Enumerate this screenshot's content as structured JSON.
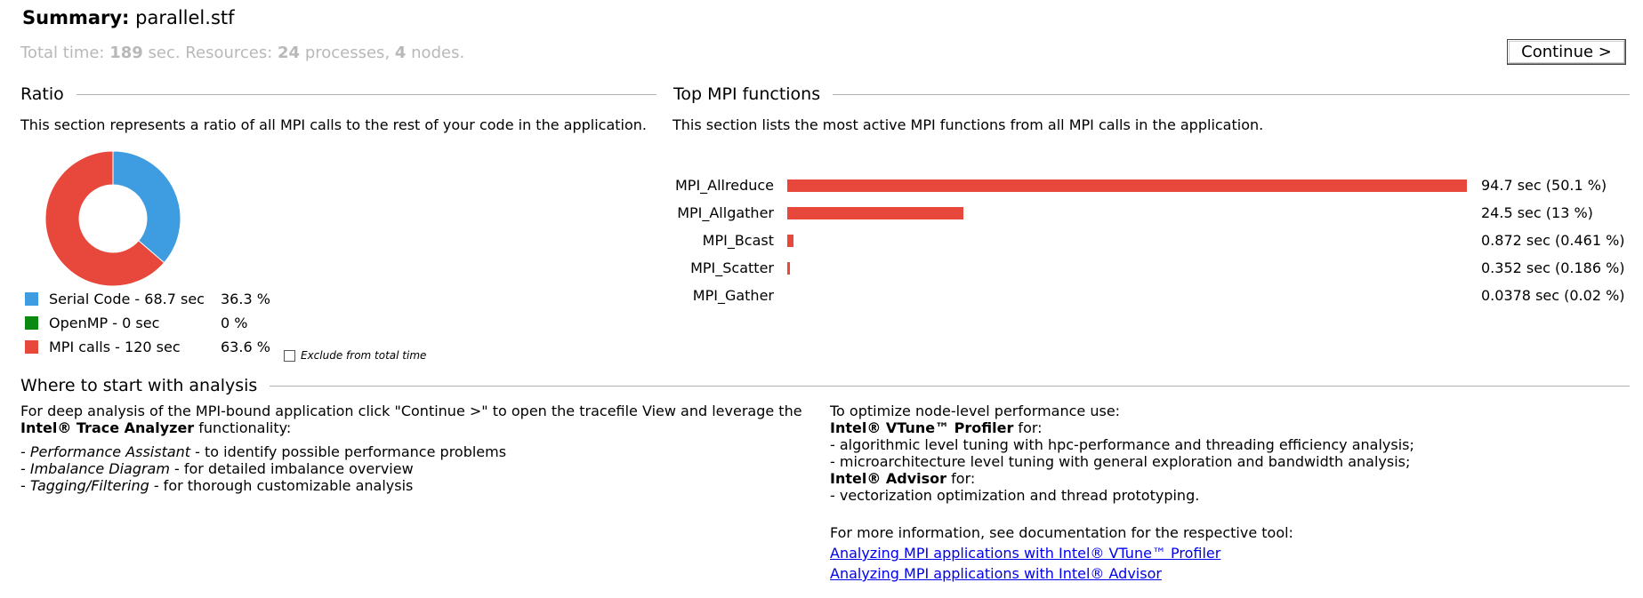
{
  "header": {
    "summary_label": "Summary:",
    "file_name": "parallel.stf",
    "total_time_prefix": "Total time: ",
    "total_time_value": "189",
    "total_time_suffix": " sec. Resources: ",
    "processes_value": "24",
    "processes_suffix": " processes, ",
    "nodes_value": "4",
    "nodes_suffix": " nodes.",
    "continue_label": "Continue >"
  },
  "ratio": {
    "heading": "Ratio",
    "description": "This section represents a ratio of all MPI calls to the rest of your code in the application.",
    "legend": [
      {
        "label": "Serial Code - 68.7 sec",
        "percent": "36.3 %",
        "color": "#3d9de0",
        "fraction": 0.363
      },
      {
        "label": "OpenMP - 0 sec",
        "percent": "0 %",
        "color": "#0a8a10",
        "fraction": 0.0
      },
      {
        "label": "MPI calls - 120 sec",
        "percent": "63.6 %",
        "color": "#e8473b",
        "fraction": 0.636
      }
    ],
    "exclude_label": "Exclude from total time",
    "exclude_checked": false
  },
  "top_mpi": {
    "heading": "Top MPI functions",
    "description": "This section lists the most active MPI functions from all MPI calls in the application.",
    "bar_color": "#e8473b",
    "rows": [
      {
        "name": "MPI_Allreduce",
        "value": "94.7 sec (50.1 %)",
        "seconds": 94.7
      },
      {
        "name": "MPI_Allgather",
        "value": "24.5 sec (13 %)",
        "seconds": 24.5
      },
      {
        "name": "MPI_Bcast",
        "value": "0.872 sec (0.461 %)",
        "seconds": 0.872
      },
      {
        "name": "MPI_Scatter",
        "value": "0.352 sec (0.186 %)",
        "seconds": 0.352
      },
      {
        "name": "MPI_Gather",
        "value": "0.0378 sec (0.02 %)",
        "seconds": 0.0378
      }
    ]
  },
  "analysis": {
    "heading": "Where to start with analysis",
    "left": {
      "intro": "For deep analysis of the MPI-bound application click \"Continue >\" to open the tracefile View and leverage the",
      "tool_bold": "Intel® Trace Analyzer",
      "tool_suffix": " functionality:",
      "items": [
        {
          "em": "Performance Assistant",
          "rest": " - to identify possible performance problems"
        },
        {
          "em": "Imbalance Diagram",
          "rest": " - for detailed imbalance overview"
        },
        {
          "em": "Tagging/Filtering",
          "rest": " - for thorough customizable analysis"
        }
      ]
    },
    "right": {
      "intro": "To optimize node-level performance use:",
      "vtune_bold": "Intel® VTune™ Profiler",
      "vtune_suffix": " for:",
      "vtune_items": [
        "- algorithmic level tuning with hpc-performance and threading efficiency analysis;",
        "- microarchitecture level tuning with general exploration and bandwidth analysis;"
      ],
      "advisor_bold": "Intel® Advisor",
      "advisor_suffix": " for:",
      "advisor_items": [
        "- vectorization optimization and thread prototyping."
      ],
      "more_info": "For more information, see documentation for the respective tool:",
      "links": [
        "Analyzing MPI applications with Intel® VTune™ Profiler",
        "Analyzing MPI applications with Intel® Advisor"
      ]
    }
  }
}
